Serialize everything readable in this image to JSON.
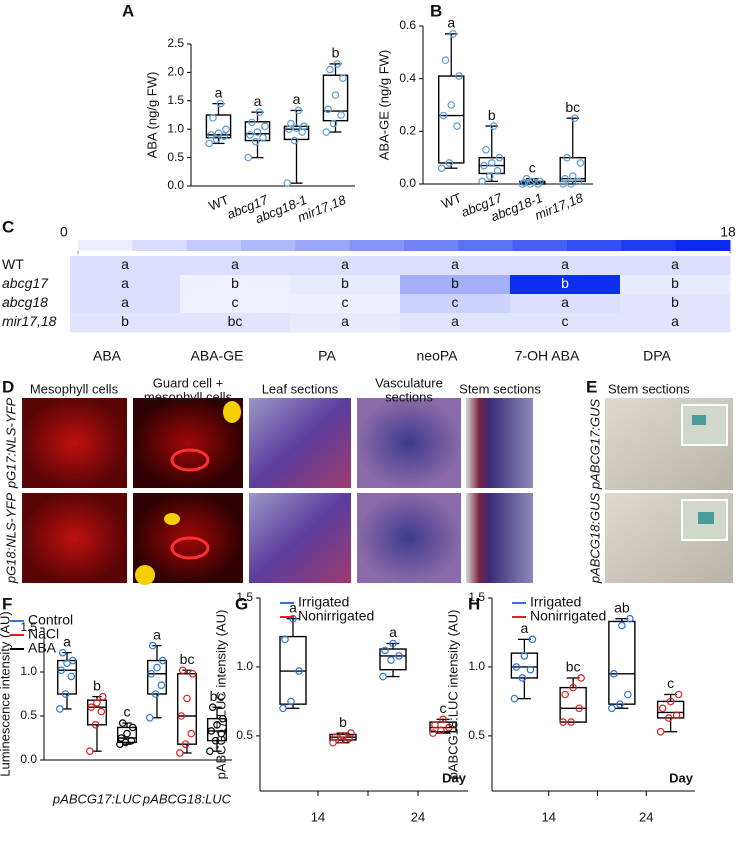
{
  "chart_data": [
    {
      "type": "box",
      "panel": "A",
      "ylabel": "ABA (ng/g FW)",
      "categories": [
        "WT",
        "abcg17",
        "abcg18-1",
        "mir17,18"
      ],
      "ylim": [
        0,
        2.5
      ],
      "yticks": [
        {
          "value": 0,
          "label": "0.0"
        },
        0.5,
        {
          "value": 1,
          "label": "1.0"
        },
        1.5,
        {
          "value": 2,
          "label": "2.0"
        },
        2.5
      ],
      "series": [
        {
          "color": "#5b9bd5",
          "boxes": [
            {
              "min": 0.75,
              "q1": 0.85,
              "median": 0.9,
              "q3": 1.25,
              "max": 1.45,
              "points": [
                0.75,
                0.82,
                0.88,
                0.9,
                0.93,
                1.0,
                1.2,
                1.45
              ],
              "letter": "a"
            },
            {
              "min": 0.5,
              "q1": 0.8,
              "median": 0.92,
              "q3": 1.13,
              "max": 1.3,
              "points": [
                0.5,
                0.78,
                0.85,
                0.9,
                0.95,
                1.05,
                1.12,
                1.3
              ],
              "letter": "a"
            },
            {
              "min": 0.05,
              "q1": 0.82,
              "median": 1.0,
              "q3": 1.05,
              "max": 1.33,
              "points": [
                0.05,
                0.8,
                0.95,
                1.0,
                1.02,
                1.05,
                1.1,
                1.33
              ],
              "letter": "a"
            },
            {
              "min": 0.95,
              "q1": 1.15,
              "median": 1.32,
              "q3": 1.95,
              "max": 2.15,
              "points": [
                0.95,
                1.1,
                1.25,
                1.35,
                1.6,
                1.9,
                2.05,
                2.15
              ],
              "letter": "b"
            }
          ]
        }
      ]
    },
    {
      "type": "box",
      "panel": "B",
      "ylabel": "ABA-GE (ng/g FW)",
      "categories": [
        "WT",
        "abcg17",
        "abcg18-1",
        "mir17,18"
      ],
      "ylim": [
        0,
        0.6
      ],
      "yticks": [
        {
          "value": 0,
          "label": "0.0"
        },
        0.2,
        0.4,
        0.6
      ],
      "series": [
        {
          "color": "#5b9bd5",
          "boxes": [
            {
              "min": 0.06,
              "q1": 0.08,
              "median": 0.26,
              "q3": 0.41,
              "max": 0.57,
              "points": [
                0.06,
                0.08,
                0.22,
                0.26,
                0.3,
                0.41,
                0.47,
                0.57
              ],
              "letter": "a"
            },
            {
              "min": 0.01,
              "q1": 0.04,
              "median": 0.07,
              "q3": 0.1,
              "max": 0.22,
              "points": [
                0.01,
                0.03,
                0.05,
                0.07,
                0.08,
                0.1,
                0.13,
                0.22
              ],
              "letter": "b"
            },
            {
              "min": 0,
              "q1": 0,
              "median": 0.005,
              "q3": 0.01,
              "max": 0.02,
              "points": [
                0,
                0,
                0,
                0.005,
                0.01,
                0.01,
                0.02
              ],
              "letter": "c"
            },
            {
              "min": 0,
              "q1": 0.01,
              "median": 0.02,
              "q3": 0.1,
              "max": 0.25,
              "points": [
                0,
                0,
                0.01,
                0.02,
                0.03,
                0.08,
                0.1,
                0.25
              ],
              "letter": "bc"
            }
          ]
        }
      ]
    },
    {
      "type": "heatmap",
      "panel": "C",
      "x": [
        "ABA",
        "ABA-GE",
        "PA",
        "neoPA",
        "7-OH ABA",
        "DPA"
      ],
      "y": [
        "WT",
        "abcg17",
        "abcg18",
        "mir17,18"
      ],
      "values": [
        [
          2,
          2,
          2,
          2,
          2,
          2
        ],
        [
          2,
          0.5,
          1,
          6,
          17,
          1
        ],
        [
          2,
          0.5,
          0.5,
          3,
          2,
          1.5
        ],
        [
          1.5,
          1.5,
          1,
          1.5,
          1.5,
          1.5
        ]
      ],
      "letters": [
        [
          "a",
          "a",
          "a",
          "a",
          "a",
          "a"
        ],
        [
          "a",
          "b",
          "b",
          "b",
          "b",
          "b"
        ],
        [
          "a",
          "c",
          "c",
          "c",
          "a",
          "b"
        ],
        [
          "b",
          "bc",
          "a",
          "a",
          "c",
          "a"
        ]
      ],
      "clim": [
        0,
        18
      ],
      "cticks": [
        0,
        18
      ],
      "colors": [
        "#f6f6ff",
        "#0022ee"
      ]
    },
    {
      "type": "box",
      "panel": "F",
      "ylabel": "Luminescence intensity (AU)",
      "categories": [
        "pABCG17:LUC",
        "pABCG18:LUC"
      ],
      "ylim": [
        0,
        1.5
      ],
      "yticks": [
        {
          "value": 0,
          "label": "0.0"
        },
        0.5,
        {
          "value": 1,
          "label": "1.0"
        },
        1.5
      ],
      "series": [
        {
          "name": "Control",
          "color": "#2e75d6",
          "boxes": [
            {
              "min": 0.58,
              "q1": 0.75,
              "median": 1.02,
              "q3": 1.13,
              "max": 1.22,
              "points": [
                0.58,
                0.75,
                0.95,
                1.02,
                1.1,
                1.13,
                1.22
              ],
              "letter": "a"
            },
            {
              "min": 0.48,
              "q1": 0.75,
              "median": 0.98,
              "q3": 1.13,
              "max": 1.3,
              "points": [
                0.48,
                0.75,
                0.85,
                0.98,
                1.05,
                1.13,
                1.3
              ],
              "letter": "a"
            }
          ]
        },
        {
          "name": "NaCl",
          "color": "#e02020",
          "boxes": [
            {
              "min": 0.1,
              "q1": 0.4,
              "median": 0.6,
              "q3": 0.68,
              "max": 0.72,
              "points": [
                0.1,
                0.4,
                0.55,
                0.6,
                0.65,
                0.72
              ],
              "letter": "b"
            },
            {
              "min": 0.08,
              "q1": 0.18,
              "median": 0.5,
              "q3": 0.98,
              "max": 1.02,
              "points": [
                0.08,
                0.18,
                0.3,
                0.5,
                0.7,
                0.98,
                1.02
              ],
              "letter": "bc"
            }
          ]
        },
        {
          "name": "ABA",
          "color": "#000000",
          "boxes": [
            {
              "min": 0.18,
              "q1": 0.2,
              "median": 0.25,
              "q3": 0.37,
              "max": 0.42,
              "points": [
                0.18,
                0.2,
                0.22,
                0.25,
                0.3,
                0.37,
                0.42
              ],
              "letter": "c"
            },
            {
              "min": 0.1,
              "q1": 0.22,
              "median": 0.33,
              "q3": 0.47,
              "max": 0.6,
              "points": [
                0.1,
                0.22,
                0.3,
                0.33,
                0.4,
                0.47,
                0.6
              ],
              "letter": "bc"
            }
          ]
        }
      ]
    },
    {
      "type": "box",
      "panel": "G",
      "ylabel": "pABCG17:LUC intensity (AU)",
      "xlabel": "Day",
      "categories": [
        "14",
        "24"
      ],
      "ylim": [
        0.1,
        1.5
      ],
      "yticks": [
        0.5,
        {
          "value": 1,
          "label": "1.0"
        },
        1.5
      ],
      "series": [
        {
          "name": "Irrigated",
          "color": "#3070e0",
          "boxes": [
            {
              "min": 0.7,
              "q1": 0.73,
              "median": 0.97,
              "q3": 1.22,
              "max": 1.35,
              "points": [
                0.7,
                0.75,
                0.97,
                1.2,
                1.35
              ],
              "letter": "a"
            },
            {
              "min": 0.93,
              "q1": 0.98,
              "median": 1.08,
              "q3": 1.13,
              "max": 1.17,
              "points": [
                0.93,
                1.05,
                1.08,
                1.12,
                1.17
              ],
              "letter": "a"
            }
          ]
        },
        {
          "name": "Nonirrigated",
          "color": "#e02020",
          "boxes": [
            {
              "min": 0.45,
              "q1": 0.47,
              "median": 0.49,
              "q3": 0.51,
              "max": 0.52,
              "points": [
                0.45,
                0.47,
                0.48,
                0.49,
                0.5,
                0.52
              ],
              "letter": "b"
            },
            {
              "min": 0.52,
              "q1": 0.53,
              "median": 0.56,
              "q3": 0.6,
              "max": 0.62,
              "points": [
                0.52,
                0.54,
                0.56,
                0.58,
                0.62
              ],
              "letter": "c"
            }
          ]
        }
      ]
    },
    {
      "type": "box",
      "panel": "H",
      "ylabel": "pABCG18:LUC intensity (AU)",
      "xlabel": "Day",
      "categories": [
        "14",
        "24"
      ],
      "ylim": [
        0.1,
        1.5
      ],
      "yticks": [
        0.5,
        {
          "value": 1,
          "label": "1.0"
        },
        1.5
      ],
      "series": [
        {
          "name": "Irrigated",
          "color": "#3070e0",
          "boxes": [
            {
              "min": 0.77,
              "q1": 0.92,
              "median": 1.0,
              "q3": 1.1,
              "max": 1.2,
              "points": [
                0.77,
                0.92,
                0.98,
                1.0,
                1.08,
                1.2
              ],
              "letter": "a"
            },
            {
              "min": 0.7,
              "q1": 0.73,
              "median": 0.95,
              "q3": 1.33,
              "max": 1.35,
              "points": [
                0.7,
                0.73,
                0.8,
                0.95,
                1.3,
                1.35
              ],
              "letter": "ab"
            }
          ]
        },
        {
          "name": "Nonirrigated",
          "color": "#e02020",
          "boxes": [
            {
              "min": 0.6,
              "q1": 0.6,
              "median": 0.7,
              "q3": 0.85,
              "max": 0.92,
              "points": [
                0.6,
                0.6,
                0.7,
                0.8,
                0.85,
                0.92
              ],
              "letter": "bc"
            },
            {
              "min": 0.53,
              "q1": 0.63,
              "median": 0.67,
              "q3": 0.75,
              "max": 0.8,
              "points": [
                0.53,
                0.63,
                0.65,
                0.7,
                0.75,
                0.8
              ],
              "letter": "c"
            }
          ]
        }
      ]
    }
  ],
  "images": {
    "panel_d": "D",
    "d_columns": [
      [
        "Mesophyll cells"
      ],
      [
        "Guard cell +",
        "mesophyll cells"
      ],
      [
        "Leaf sections"
      ],
      [
        "Vasculature",
        "sections"
      ],
      [
        "Stem sections"
      ]
    ],
    "d_rows": [
      "pG17:NLS-YFP",
      "pG18:NLS-YFP"
    ],
    "panel_e": "E",
    "e_title": "Stem sections",
    "e_rows": [
      "pABCG17:GUS",
      "pABCG18:GUS"
    ]
  }
}
